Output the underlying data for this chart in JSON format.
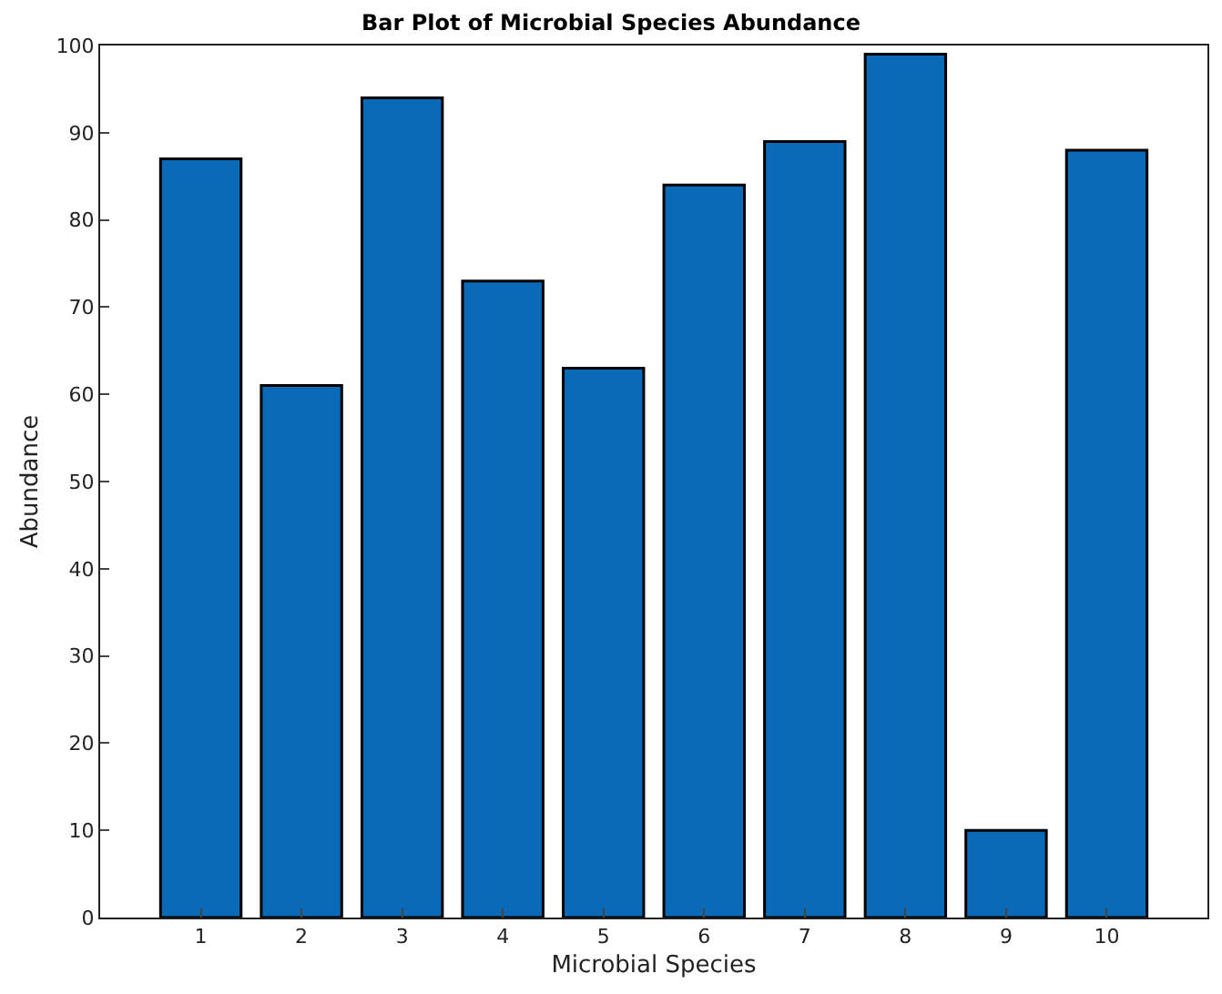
{
  "chart_data": {
    "type": "bar",
    "title": "Bar Plot of Microbial Species Abundance",
    "xlabel": "Microbial Species",
    "ylabel": "Abundance",
    "categories": [
      "1",
      "2",
      "3",
      "4",
      "5",
      "6",
      "7",
      "8",
      "9",
      "10"
    ],
    "values": [
      87,
      61,
      94,
      73,
      63,
      84,
      89,
      99,
      10,
      88
    ],
    "color": "#0a6ab8",
    "ylim": [
      0,
      100
    ],
    "yticks": [
      0,
      10,
      20,
      30,
      40,
      50,
      60,
      70,
      80,
      90,
      100
    ],
    "legend": false
  }
}
